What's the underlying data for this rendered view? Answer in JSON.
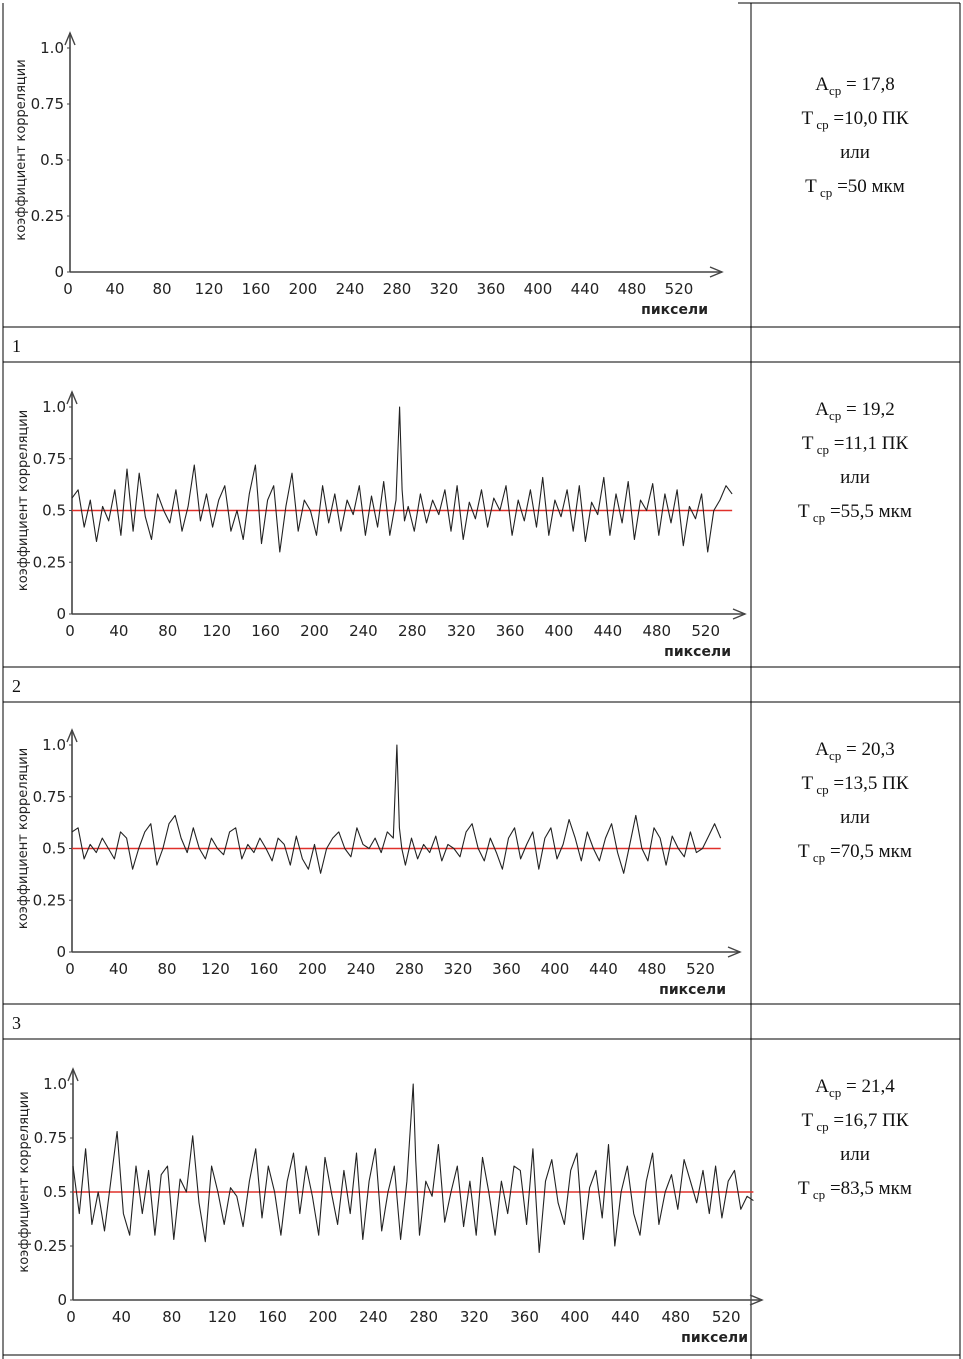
{
  "colors": {
    "line": "#222222",
    "mean": "#e0302a",
    "grid": "#000000"
  },
  "rows": [
    {
      "number": "1",
      "info": {
        "A_main": "A",
        "A_sub": "ср",
        "A_val": " = 17,8",
        "T1_main": "T",
        "T1_sub": "ср",
        "T1_val": " =10,0 ПК",
        "or": "или",
        "T2_main": "T",
        "T2_sub": "ср",
        "T2_val": " =50 мкм"
      },
      "chart_data": {
        "type": "line",
        "title": "",
        "xlabel": "пиксели",
        "ylabel": "коэффициент корреляции",
        "xlim": [
          0,
          560
        ],
        "ylim": [
          0,
          1.0
        ],
        "xticks": [
          "0",
          "40",
          "80",
          "120",
          "160",
          "200",
          "240",
          "280",
          "320",
          "360",
          "400",
          "440",
          "480",
          "520"
        ],
        "yticks": [
          "0",
          "0.25",
          "0.5",
          "0.75",
          "1.0"
        ],
        "series": []
      }
    },
    {
      "number": "2",
      "info": {
        "A_main": "A",
        "A_sub": "ср",
        "A_val": " = 19,2",
        "T1_main": "T",
        "T1_sub": "ср",
        "T1_val": " =11,1 ПК",
        "or": "или",
        "T2_main": "T",
        "T2_sub": "ср",
        "T2_val": " =55,5 мкм"
      },
      "chart_data": {
        "type": "line",
        "title": "",
        "xlabel": "пиксели",
        "ylabel": "коэффициент корреляции",
        "xlim": [
          0,
          560
        ],
        "ylim": [
          0,
          1.0
        ],
        "mean_line": 0.5,
        "xticks": [
          "0",
          "40",
          "80",
          "120",
          "160",
          "200",
          "240",
          "280",
          "320",
          "360",
          "400",
          "440",
          "480",
          "520"
        ],
        "yticks": [
          "0",
          "0.25",
          "0.5",
          "0.75",
          "1.0"
        ],
        "series": [
          {
            "x": [
              0,
              5,
              10,
              15,
              20,
              25,
              30,
              35,
              40,
              45,
              50,
              55,
              60,
              65,
              70,
              75,
              80,
              85,
              90,
              95,
              100,
              105,
              110,
              115,
              120,
              125,
              130,
              135,
              140,
              145,
              150,
              155,
              160,
              165,
              170,
              175,
              180,
              185,
              190,
              195,
              200,
              205,
              210,
              215,
              220,
              225,
              230,
              235,
              240,
              245,
              250,
              255,
              260,
              265,
              268,
              270,
              272,
              275,
              280,
              285,
              290,
              295,
              300,
              305,
              310,
              315,
              320,
              325,
              330,
              335,
              340,
              345,
              350,
              355,
              360,
              365,
              370,
              375,
              380,
              385,
              390,
              395,
              400,
              405,
              410,
              415,
              420,
              425,
              430,
              435,
              440,
              445,
              450,
              455,
              460,
              465,
              470,
              475,
              480,
              485,
              490,
              495,
              500,
              505,
              510,
              515,
              520,
              525,
              530,
              535,
              540
            ],
            "y": [
              0.56,
              0.6,
              0.42,
              0.55,
              0.35,
              0.52,
              0.45,
              0.6,
              0.38,
              0.7,
              0.4,
              0.68,
              0.47,
              0.36,
              0.58,
              0.5,
              0.44,
              0.6,
              0.4,
              0.52,
              0.72,
              0.45,
              0.58,
              0.42,
              0.55,
              0.62,
              0.4,
              0.5,
              0.36,
              0.58,
              0.72,
              0.34,
              0.55,
              0.62,
              0.3,
              0.52,
              0.68,
              0.4,
              0.55,
              0.5,
              0.38,
              0.62,
              0.44,
              0.58,
              0.4,
              0.55,
              0.48,
              0.62,
              0.38,
              0.57,
              0.42,
              0.64,
              0.38,
              0.55,
              1.0,
              0.6,
              0.45,
              0.52,
              0.4,
              0.58,
              0.44,
              0.55,
              0.48,
              0.6,
              0.4,
              0.62,
              0.36,
              0.54,
              0.46,
              0.6,
              0.42,
              0.56,
              0.5,
              0.62,
              0.38,
              0.55,
              0.45,
              0.6,
              0.42,
              0.66,
              0.38,
              0.55,
              0.47,
              0.6,
              0.4,
              0.62,
              0.35,
              0.54,
              0.48,
              0.66,
              0.38,
              0.58,
              0.44,
              0.64,
              0.36,
              0.55,
              0.5,
              0.63,
              0.38,
              0.58,
              0.44,
              0.6,
              0.33,
              0.52,
              0.46,
              0.58,
              0.3,
              0.5,
              0.55,
              0.62,
              0.58
            ]
          }
        ]
      }
    },
    {
      "number": "3",
      "info": {
        "A_main": "A",
        "A_sub": "ср",
        "A_val": " = 20,3",
        "T1_main": "T",
        "T1_sub": "ср",
        "T1_val": " =13,5 ПК",
        "or": "или",
        "T2_main": "T",
        "T2_sub": "ср",
        "T2_val": " =70,5 мкм"
      },
      "chart_data": {
        "type": "line",
        "title": "",
        "xlabel": "пиксели",
        "ylabel": "коэффициент корреляции",
        "xlim": [
          0,
          560
        ],
        "ylim": [
          0,
          1.0
        ],
        "mean_line": 0.5,
        "xticks": [
          "0",
          "40",
          "80",
          "120",
          "160",
          "200",
          "240",
          "280",
          "320",
          "360",
          "400",
          "440",
          "480",
          "520"
        ],
        "yticks": [
          "0",
          "0.25",
          "0.5",
          "0.75",
          "1.0"
        ],
        "series": [
          {
            "x": [
              0,
              5,
              10,
              15,
              20,
              25,
              30,
              35,
              40,
              45,
              50,
              55,
              60,
              65,
              70,
              75,
              80,
              85,
              90,
              95,
              100,
              105,
              110,
              115,
              120,
              125,
              130,
              135,
              140,
              145,
              150,
              155,
              160,
              165,
              170,
              175,
              180,
              185,
              190,
              195,
              200,
              205,
              210,
              215,
              220,
              225,
              230,
              235,
              240,
              245,
              250,
              255,
              260,
              265,
              268,
              270,
              272,
              275,
              280,
              285,
              290,
              295,
              300,
              305,
              310,
              315,
              320,
              325,
              330,
              335,
              340,
              345,
              350,
              355,
              360,
              365,
              370,
              375,
              380,
              385,
              390,
              395,
              400,
              405,
              410,
              415,
              420,
              425,
              430,
              435,
              440,
              445,
              450,
              455,
              460,
              465,
              470,
              475,
              480,
              485,
              490,
              495,
              500,
              505,
              510,
              515,
              520,
              525,
              530,
              535
            ],
            "y": [
              0.58,
              0.6,
              0.45,
              0.52,
              0.48,
              0.55,
              0.5,
              0.45,
              0.58,
              0.55,
              0.4,
              0.5,
              0.58,
              0.62,
              0.42,
              0.5,
              0.62,
              0.66,
              0.55,
              0.48,
              0.6,
              0.5,
              0.45,
              0.55,
              0.5,
              0.47,
              0.58,
              0.6,
              0.45,
              0.52,
              0.48,
              0.55,
              0.5,
              0.44,
              0.55,
              0.52,
              0.42,
              0.56,
              0.45,
              0.4,
              0.52,
              0.38,
              0.5,
              0.55,
              0.58,
              0.5,
              0.46,
              0.6,
              0.52,
              0.5,
              0.55,
              0.48,
              0.58,
              0.55,
              1.0,
              0.6,
              0.5,
              0.42,
              0.55,
              0.45,
              0.52,
              0.48,
              0.56,
              0.44,
              0.52,
              0.5,
              0.46,
              0.58,
              0.62,
              0.5,
              0.44,
              0.55,
              0.48,
              0.4,
              0.55,
              0.6,
              0.45,
              0.52,
              0.58,
              0.4,
              0.55,
              0.6,
              0.45,
              0.52,
              0.64,
              0.55,
              0.44,
              0.58,
              0.5,
              0.44,
              0.55,
              0.62,
              0.48,
              0.38,
              0.52,
              0.66,
              0.5,
              0.44,
              0.6,
              0.55,
              0.42,
              0.56,
              0.5,
              0.46,
              0.58,
              0.48,
              0.5,
              0.56,
              0.62,
              0.55
            ]
          }
        ]
      }
    },
    {
      "number": "",
      "info": {
        "A_main": "A",
        "A_sub": "ср",
        "A_val": " = 21,4",
        "T1_main": "T",
        "T1_sub": "ср",
        "T1_val": " =16,7 ПК",
        "or": "или",
        "T2_main": "T",
        "T2_sub": "ср",
        "T2_val": " =83,5 мкм"
      },
      "chart_data": {
        "type": "line",
        "title": "",
        "xlabel": "пиксели",
        "ylabel": "коэффициент корреляции",
        "xlim": [
          0,
          560
        ],
        "ylim": [
          0,
          1.0
        ],
        "mean_line": 0.5,
        "xticks": [
          "0",
          "40",
          "80",
          "120",
          "160",
          "200",
          "240",
          "280",
          "320",
          "360",
          "400",
          "440",
          "480",
          "520"
        ],
        "yticks": [
          "0",
          "0.25",
          "0.5",
          "0.75",
          "1.0"
        ],
        "series": [
          {
            "x": [
              0,
              5,
              10,
              15,
              20,
              25,
              30,
              35,
              40,
              45,
              50,
              55,
              60,
              65,
              70,
              75,
              80,
              85,
              90,
              95,
              100,
              105,
              110,
              115,
              120,
              125,
              130,
              135,
              140,
              145,
              150,
              155,
              160,
              165,
              170,
              175,
              180,
              185,
              190,
              195,
              200,
              205,
              210,
              215,
              220,
              225,
              230,
              235,
              240,
              245,
              250,
              255,
              260,
              265,
              270,
              272,
              275,
              280,
              285,
              290,
              295,
              300,
              305,
              310,
              315,
              320,
              325,
              330,
              335,
              340,
              345,
              350,
              355,
              360,
              365,
              370,
              375,
              380,
              385,
              390,
              395,
              400,
              405,
              410,
              415,
              420,
              425,
              430,
              435,
              440,
              445,
              450,
              455,
              460,
              465,
              470,
              475,
              480,
              485,
              490,
              495,
              500,
              505,
              510,
              515,
              520,
              525,
              530,
              535,
              540
            ],
            "y": [
              0.62,
              0.4,
              0.7,
              0.35,
              0.5,
              0.32,
              0.55,
              0.78,
              0.4,
              0.3,
              0.62,
              0.4,
              0.6,
              0.3,
              0.58,
              0.62,
              0.28,
              0.56,
              0.5,
              0.76,
              0.45,
              0.27,
              0.62,
              0.5,
              0.35,
              0.52,
              0.48,
              0.34,
              0.55,
              0.7,
              0.38,
              0.62,
              0.5,
              0.3,
              0.55,
              0.68,
              0.4,
              0.62,
              0.48,
              0.3,
              0.66,
              0.5,
              0.35,
              0.6,
              0.4,
              0.68,
              0.28,
              0.55,
              0.7,
              0.32,
              0.5,
              0.62,
              0.28,
              0.55,
              1.0,
              0.65,
              0.3,
              0.55,
              0.48,
              0.72,
              0.36,
              0.5,
              0.62,
              0.34,
              0.55,
              0.3,
              0.66,
              0.5,
              0.3,
              0.55,
              0.4,
              0.62,
              0.6,
              0.35,
              0.7,
              0.22,
              0.55,
              0.65,
              0.45,
              0.35,
              0.6,
              0.68,
              0.28,
              0.52,
              0.6,
              0.38,
              0.72,
              0.25,
              0.5,
              0.62,
              0.4,
              0.3,
              0.55,
              0.68,
              0.35,
              0.5,
              0.58,
              0.42,
              0.65,
              0.55,
              0.45,
              0.6,
              0.4,
              0.62,
              0.38,
              0.55,
              0.6,
              0.42,
              0.48,
              0.46
            ]
          }
        ]
      }
    }
  ]
}
